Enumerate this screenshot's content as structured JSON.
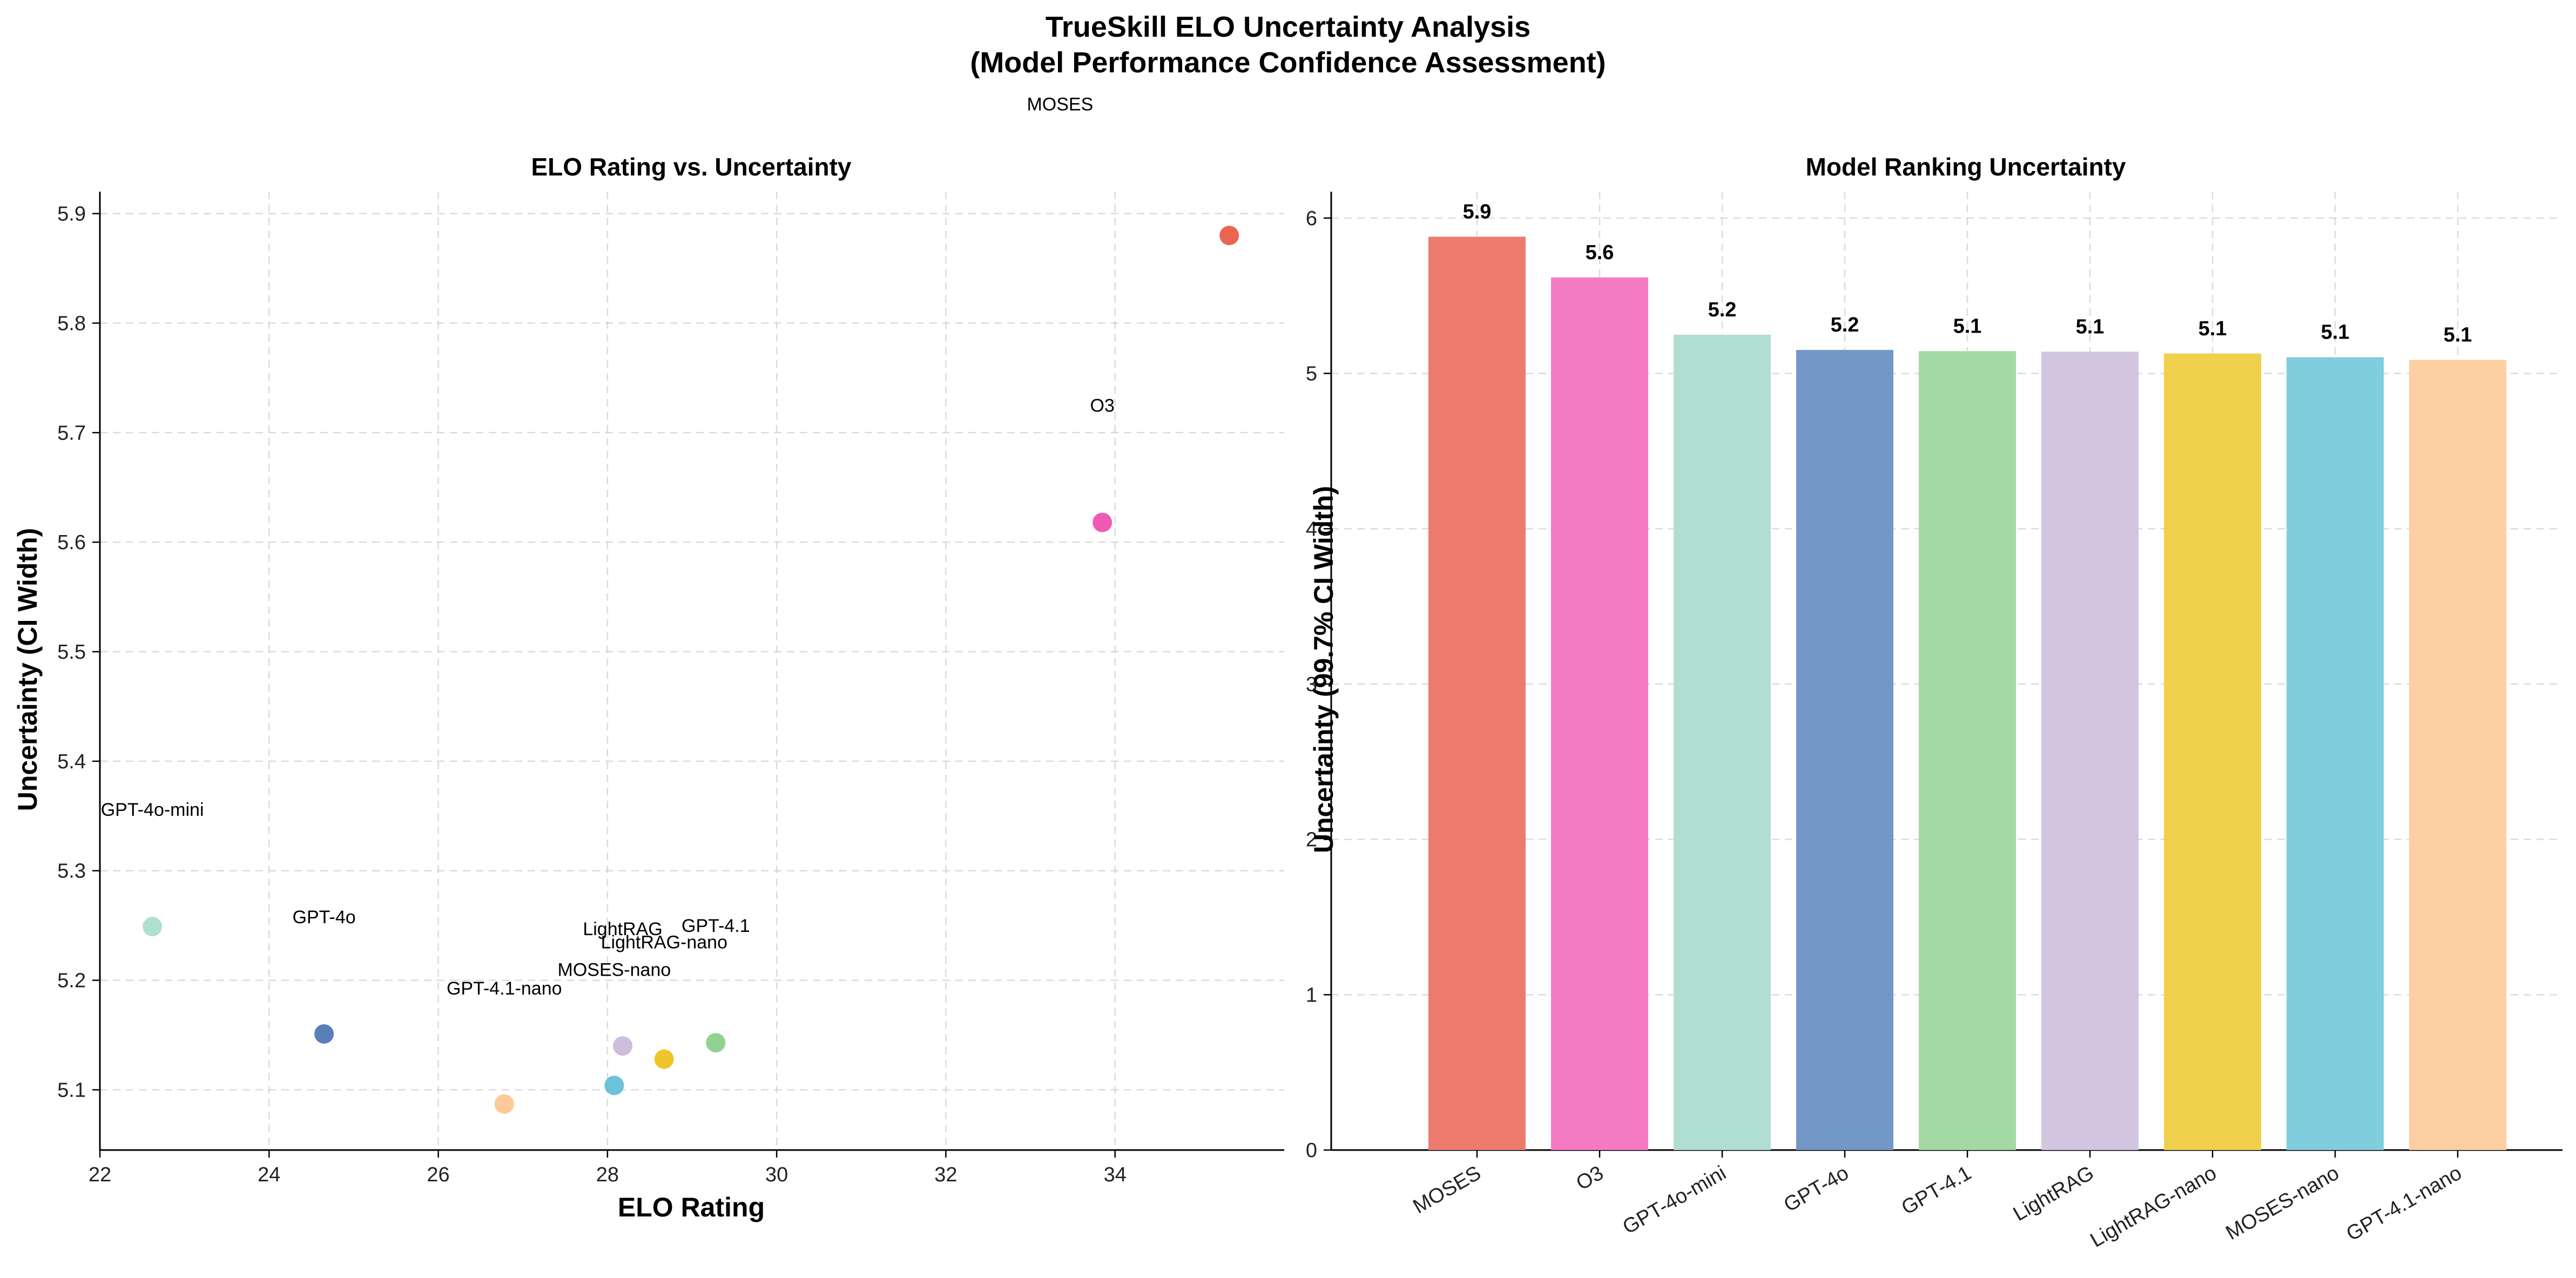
{
  "figure": {
    "title_line1": "TrueSkill ELO Uncertainty Analysis",
    "title_line2": "(Model Performance Confidence Assessment)"
  },
  "chart_data": [
    {
      "type": "scatter",
      "title": "ELO Rating vs. Uncertainty",
      "xlabel": "ELO Rating",
      "ylabel": "Uncertainty (CI Width)",
      "xlim": [
        22.0,
        36.0
      ],
      "ylim": [
        5.045,
        5.92
      ],
      "xticks": [
        22,
        24,
        26,
        28,
        30,
        32,
        34
      ],
      "yticks": [
        5.1,
        5.2,
        5.3,
        5.4,
        5.5,
        5.6,
        5.7,
        5.8,
        5.9
      ],
      "grid": true,
      "points": [
        {
          "label": "MOSES",
          "x": 35.35,
          "y": 5.88,
          "color": "#e8553f",
          "label_x": 33.35,
          "label_y": 6.0
        },
        {
          "label": "O3",
          "x": 33.85,
          "y": 5.618,
          "color": "#ee48ac",
          "label_x": 33.85,
          "label_y": 5.725
        },
        {
          "label": "GPT-4o-mini",
          "x": 22.62,
          "y": 5.249,
          "color": "#a6dbcc",
          "label_x": 22.62,
          "label_y": 5.356
        },
        {
          "label": "GPT-4o",
          "x": 24.65,
          "y": 5.151,
          "color": "#4671b3",
          "label_x": 24.65,
          "label_y": 5.258
        },
        {
          "label": "GPT-4.1",
          "x": 29.28,
          "y": 5.143,
          "color": "#85cd86",
          "label_x": 29.28,
          "label_y": 5.25
        },
        {
          "label": "LightRAG",
          "x": 28.18,
          "y": 5.14,
          "color": "#c8b7da",
          "label_x": 28.18,
          "label_y": 5.247
        },
        {
          "label": "LightRAG-nano",
          "x": 28.67,
          "y": 5.128,
          "color": "#eebe14",
          "label_x": 28.67,
          "label_y": 5.235
        },
        {
          "label": "MOSES-nano",
          "x": 28.08,
          "y": 5.104,
          "color": "#5dbcd6",
          "label_x": 28.08,
          "label_y": 5.21
        },
        {
          "label": "GPT-4.1-nano",
          "x": 26.78,
          "y": 5.087,
          "color": "#fdc28f",
          "label_x": 26.78,
          "label_y": 5.193
        }
      ]
    },
    {
      "type": "bar",
      "title": "Model Ranking Uncertainty",
      "xlabel": "",
      "ylabel": "Uncertainty (99.7% CI Width)",
      "ylim": [
        0,
        6.17
      ],
      "yticks": [
        0,
        1,
        2,
        3,
        4,
        5,
        6
      ],
      "grid": true,
      "categories": [
        "MOSES",
        "O3",
        "GPT-4o-mini",
        "GPT-4o",
        "GPT-4.1",
        "LightRAG",
        "LightRAG-nano",
        "MOSES-nano",
        "GPT-4.1-nano"
      ],
      "values": [
        5.88,
        5.618,
        5.249,
        5.151,
        5.143,
        5.14,
        5.128,
        5.104,
        5.087
      ],
      "value_labels": [
        "5.9",
        "5.6",
        "5.2",
        "5.2",
        "5.1",
        "5.1",
        "5.1",
        "5.1",
        "5.1"
      ],
      "colors": [
        "#ec7b6d",
        "#f47bc2",
        "#b1ded2",
        "#7397c6",
        "#a4d9a3",
        "#d1c5e0",
        "#f0d04b",
        "#80cddd",
        "#fdcfa3"
      ]
    }
  ]
}
